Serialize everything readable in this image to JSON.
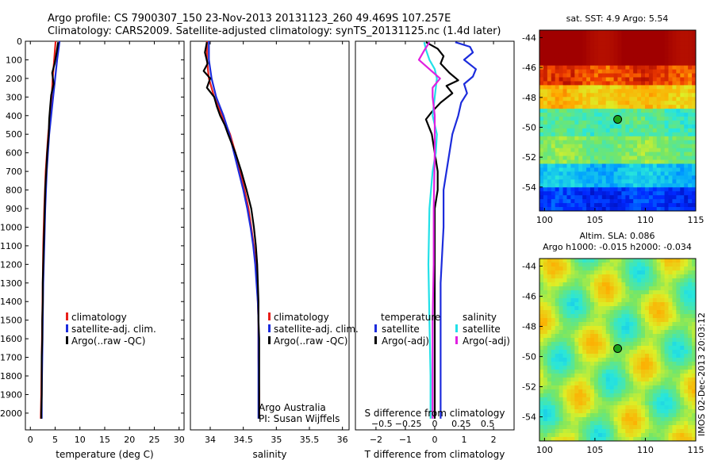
{
  "title": {
    "line1": "Argo profile: CS 7900307_150 23-Nov-2013 20131123_260 49.469S 107.257E",
    "line2": "Climatology: CARS2009. Satellite-adjusted climatology: synTS_20131125.nc (1.4d later)"
  },
  "credits": {
    "line1": "Argo Australia",
    "line2": "PI: Susan Wijffels"
  },
  "watermark": "IMOS 02-Dec-2013 20:03:12",
  "colors": {
    "climatology": "#e8201a",
    "satellite": "#1c2cdc",
    "argo": "#000000",
    "cyan": "#22e0e8",
    "magenta": "#e020e0",
    "dot": "#1aa01a"
  },
  "chart_data": [
    {
      "id": "temperature",
      "type": "line",
      "xlabel": "temperature (deg C)",
      "ylabel": "",
      "xlim": [
        -1,
        31
      ],
      "ylim": [
        2090,
        0
      ],
      "xticks": [
        0,
        5,
        10,
        15,
        20,
        25,
        30
      ],
      "xtick_labels": [
        "0",
        "5",
        "10",
        "15",
        "20",
        "25",
        "30"
      ],
      "yticks": [
        0,
        100,
        200,
        300,
        400,
        500,
        600,
        700,
        800,
        900,
        1000,
        1100,
        1200,
        1300,
        1400,
        1500,
        1600,
        1700,
        1800,
        1900,
        2000
      ],
      "legend": [
        "climatology",
        "satellite-adj. clim.",
        "Argo(..raw -QC)"
      ],
      "series": [
        {
          "name": "climatology",
          "color": "#e8201a",
          "depth": [
            0,
            100,
            200,
            300,
            400,
            500,
            700,
            900,
            1100,
            1300,
            1500,
            1700,
            1900,
            2030
          ],
          "x": [
            5.1,
            4.8,
            4.5,
            4.3,
            4.0,
            3.6,
            3.1,
            2.8,
            2.6,
            2.5,
            2.4,
            2.3,
            2.2,
            2.1
          ]
        },
        {
          "name": "satellite-adj. clim.",
          "color": "#1c2cdc",
          "depth": [
            0,
            100,
            200,
            300,
            400,
            500,
            700,
            900,
            1100,
            1300,
            1500,
            1700,
            1900,
            2030
          ],
          "x": [
            5.9,
            5.4,
            5.0,
            4.6,
            4.2,
            3.8,
            3.3,
            3.0,
            2.8,
            2.6,
            2.5,
            2.4,
            2.3,
            2.3
          ]
        },
        {
          "name": "Argo(..raw -QC)",
          "color": "#000000",
          "depth": [
            5,
            60,
            120,
            170,
            230,
            290,
            350,
            420,
            500,
            600,
            700,
            800,
            900,
            1000,
            1100,
            1200,
            1300,
            1400,
            1500,
            1600,
            1700,
            1800,
            1900,
            2000,
            2030
          ],
          "x": [
            5.6,
            5.3,
            4.9,
            4.4,
            4.7,
            4.2,
            4.0,
            3.8,
            3.7,
            3.4,
            3.2,
            3.0,
            2.9,
            2.8,
            2.7,
            2.6,
            2.5,
            2.5,
            2.4,
            2.4,
            2.3,
            2.3,
            2.3,
            2.2,
            2.2
          ]
        }
      ]
    },
    {
      "id": "salinity",
      "type": "line",
      "xlabel": "salinity",
      "xlim": [
        33.7,
        36.1
      ],
      "ylim": [
        2090,
        0
      ],
      "xticks": [
        34,
        34.5,
        35,
        35.5,
        36
      ],
      "xtick_labels": [
        "34",
        "34.5",
        "35",
        "35.5",
        "36"
      ],
      "legend": [
        "climatology",
        "satellite-adj. clim.",
        "Argo(..raw -QC)"
      ],
      "series": [
        {
          "name": "climatology",
          "color": "#e8201a",
          "depth": [
            0,
            100,
            200,
            300,
            400,
            500,
            600,
            700,
            800,
            900,
            1000,
            1100,
            1200,
            1300,
            1400,
            1500,
            1700,
            1900,
            2030
          ],
          "x": [
            33.95,
            33.95,
            33.98,
            34.06,
            34.18,
            34.3,
            34.38,
            34.45,
            34.52,
            34.58,
            34.62,
            34.66,
            34.69,
            34.71,
            34.72,
            34.73,
            34.73,
            34.74,
            34.74
          ]
        },
        {
          "name": "satellite-adj. clim.",
          "color": "#1c2cdc",
          "depth": [
            0,
            100,
            200,
            300,
            400,
            500,
            600,
            700,
            800,
            900,
            1000,
            1100,
            1200,
            1300,
            1400,
            1500,
            1700,
            1900,
            2030
          ],
          "x": [
            33.98,
            33.98,
            34.02,
            34.09,
            34.2,
            34.29,
            34.36,
            34.43,
            34.5,
            34.56,
            34.61,
            34.65,
            34.68,
            34.7,
            34.72,
            34.73,
            34.73,
            34.73,
            34.73
          ]
        },
        {
          "name": "Argo(..raw -QC)",
          "color": "#000000",
          "depth": [
            5,
            60,
            120,
            160,
            200,
            250,
            300,
            350,
            400,
            450,
            500,
            600,
            700,
            800,
            900,
            1000,
            1100,
            1200,
            1300,
            1400,
            1500,
            1600,
            1700,
            1800,
            1900,
            2000,
            2030
          ],
          "x": [
            33.95,
            33.92,
            33.96,
            33.9,
            34.0,
            33.95,
            34.06,
            34.1,
            34.15,
            34.22,
            34.27,
            34.38,
            34.47,
            34.55,
            34.62,
            34.66,
            34.69,
            34.71,
            34.72,
            34.73,
            34.73,
            34.74,
            34.74,
            34.74,
            34.74,
            34.74,
            34.74
          ]
        }
      ]
    },
    {
      "id": "difference",
      "type": "line",
      "xlabel": "T difference from climatology",
      "xlabel_top": "S difference from climatology",
      "xlim": [
        -2.7,
        2.7
      ],
      "ylim": [
        2090,
        0
      ],
      "xticks": [
        -2,
        -1,
        0,
        1,
        2
      ],
      "xtick_labels": [
        "−2",
        "−1",
        "0",
        "1",
        "2"
      ],
      "sticks": [
        -0.5,
        -0.25,
        0,
        0.25,
        0.5
      ],
      "stick_labels": [
        "−0.5",
        "−0.25",
        "0",
        "0.25",
        "0.5"
      ],
      "legend_headings": [
        "temperature",
        "salinity"
      ],
      "legend": [
        "satellite",
        "Argo(-adj)",
        "satellite",
        "Argo(-adj)"
      ],
      "series": [
        {
          "name": "T satellite",
          "color": "#1c2cdc",
          "depth": [
            5,
            30,
            60,
            100,
            150,
            190,
            230,
            280,
            330,
            400,
            500,
            600,
            800,
            1000,
            1300,
            1600,
            2030
          ],
          "x": [
            0.7,
            1.2,
            1.3,
            1.0,
            1.4,
            1.3,
            1.0,
            1.1,
            0.9,
            0.8,
            0.6,
            0.5,
            0.3,
            0.3,
            0.2,
            0.2,
            0.2
          ]
        },
        {
          "name": "T Argo(-adj)",
          "color": "#000000",
          "depth": [
            5,
            40,
            80,
            120,
            170,
            210,
            240,
            280,
            330,
            380,
            420,
            500,
            600,
            700,
            800,
            900,
            1000,
            1200,
            1500,
            1800,
            2030
          ],
          "x": [
            -0.3,
            0.1,
            0.3,
            0.2,
            0.5,
            0.8,
            0.4,
            0.6,
            0.2,
            -0.1,
            -0.3,
            -0.1,
            0.0,
            0.1,
            0.1,
            0.0,
            0.0,
            0.0,
            0.0,
            0.0,
            0.0
          ]
        },
        {
          "name": "S satellite",
          "color": "#22e0e8",
          "depth": [
            5,
            50,
            100,
            150,
            200,
            300,
            400,
            500,
            600,
            700,
            900,
            1200,
            1500,
            1800,
            2030
          ],
          "x": [
            -0.1,
            -0.08,
            -0.05,
            0.0,
            0.02,
            0.0,
            -0.02,
            0.02,
            0.01,
            -0.02,
            -0.05,
            -0.06,
            -0.05,
            -0.04,
            -0.04
          ]
        },
        {
          "name": "S Argo(-adj)",
          "color": "#e020e0",
          "depth": [
            5,
            50,
            100,
            150,
            200,
            250,
            300,
            400,
            600,
            900,
            1200,
            1500,
            1800,
            2030
          ],
          "x": [
            -0.05,
            -0.1,
            -0.15,
            -0.05,
            0.05,
            -0.02,
            -0.02,
            0.0,
            0.0,
            -0.01,
            -0.01,
            -0.02,
            -0.02,
            -0.02
          ]
        }
      ]
    },
    {
      "id": "sst-map",
      "type": "heatmap",
      "title": "sat. SST: 4.9 Argo: 5.54",
      "xticks": [
        100,
        105,
        110,
        115
      ],
      "yticks": [
        -44,
        -46,
        -48,
        -50,
        -52,
        -54
      ],
      "xtick_labels": [
        "100",
        "105",
        "110",
        "115"
      ],
      "ytick_labels": [
        "-44",
        "-46",
        "-48",
        "-50",
        "-52",
        "-54"
      ],
      "xlim": [
        99.5,
        115
      ],
      "ylim": [
        -43.5,
        -55.6
      ],
      "marker": {
        "lon": 107.257,
        "lat": -49.469
      }
    },
    {
      "id": "sla-map",
      "type": "heatmap",
      "title_line1": "Altim. SLA: 0.086",
      "title_line2": "Argo h1000: -0.015 h2000: -0.034",
      "xticks": [
        100,
        105,
        110,
        115
      ],
      "yticks": [
        -44,
        -46,
        -48,
        -50,
        -52,
        -54
      ],
      "xtick_labels": [
        "100",
        "105",
        "110",
        "115"
      ],
      "ytick_labels": [
        "-44",
        "-46",
        "-48",
        "-50",
        "-52",
        "-54"
      ],
      "xlim": [
        99.5,
        115
      ],
      "ylim": [
        -43.5,
        -55.6
      ],
      "marker": {
        "lon": 107.257,
        "lat": -49.469
      }
    }
  ]
}
